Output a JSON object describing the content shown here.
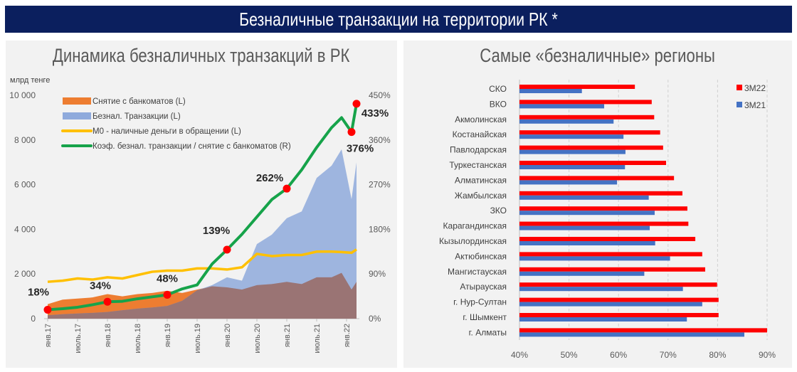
{
  "header": {
    "title": "Безналичные транзакции на территории РК *"
  },
  "chart_data": [
    {
      "type": "area",
      "title": "Динамика безналичных транзакций в РК",
      "ylabel": "млрд тенге",
      "ylim": [
        0,
        10000
      ],
      "y2lim": [
        0,
        450
      ],
      "y_ticks": [
        "0",
        "2 000",
        "4 000",
        "6 000",
        "8 000",
        "10 000"
      ],
      "y2_ticks": [
        "0%",
        "90%",
        "180%",
        "270%",
        "360%",
        "450%"
      ],
      "x_ticks": [
        "янв.17",
        "июль.17",
        "янв.18",
        "июль.18",
        "янв.19",
        "июль.19",
        "янв.20",
        "июль.20",
        "янв.21",
        "июль.21",
        "янв.22"
      ],
      "grid": false,
      "legend_position": "top-left",
      "x": [
        "2017-01",
        "2017-04",
        "2017-07",
        "2017-10",
        "2018-01",
        "2018-04",
        "2018-07",
        "2018-10",
        "2019-01",
        "2019-04",
        "2019-07",
        "2019-10",
        "2020-01",
        "2020-04",
        "2020-07",
        "2020-10",
        "2021-01",
        "2021-04",
        "2021-07",
        "2021-10",
        "2021-12",
        "2022-02",
        "2022-03"
      ],
      "series": [
        {
          "name": "Снятие с банкоматов (L)",
          "kind": "area",
          "axis": "left",
          "color": "#ed7d31",
          "values": [
            650,
            850,
            900,
            950,
            1100,
            1000,
            1100,
            1150,
            1250,
            1150,
            1300,
            1450,
            1400,
            1300,
            1500,
            1550,
            1650,
            1550,
            1850,
            1850,
            2050,
            1300,
            1650
          ]
        },
        {
          "name": "Безнал. Транзакции (L)",
          "kind": "area",
          "axis": "left",
          "color": "#8faadc",
          "values": [
            150,
            200,
            230,
            260,
            300,
            380,
            450,
            500,
            570,
            800,
            1270,
            1500,
            1850,
            1700,
            3340,
            3760,
            4500,
            4800,
            6300,
            6850,
            7580,
            5350,
            7000
          ]
        },
        {
          "name": "М0 - наличные деньги в обращении (L)",
          "kind": "line",
          "axis": "left",
          "color": "#ffc000",
          "values": [
            1650,
            1700,
            1800,
            1750,
            1850,
            1800,
            1950,
            2100,
            2150,
            2150,
            2250,
            2250,
            2200,
            2300,
            2900,
            2800,
            2850,
            2850,
            3000,
            3000,
            2980,
            2950,
            3100
          ]
        },
        {
          "name": "Коэф. безнал. транзакции / снятие с банкоматов (R)",
          "kind": "line",
          "axis": "right",
          "color": "#16a34a",
          "values": [
            18,
            20,
            23,
            28,
            34,
            35,
            40,
            44,
            48,
            60,
            68,
            110,
            139,
            170,
            205,
            240,
            262,
            300,
            345,
            385,
            405,
            376,
            433
          ]
        }
      ],
      "annotations": [
        {
          "x": "2017-01",
          "value": 18,
          "label": "18%"
        },
        {
          "x": "2018-01",
          "value": 34,
          "label": "34%"
        },
        {
          "x": "2019-01",
          "value": 48,
          "label": "48%"
        },
        {
          "x": "2020-01",
          "value": 139,
          "label": "139%"
        },
        {
          "x": "2021-01",
          "value": 262,
          "label": "262%"
        },
        {
          "x": "2022-02",
          "value": 376,
          "label": "376%"
        },
        {
          "x": "2022-03",
          "value": 433,
          "label": "433%"
        }
      ]
    },
    {
      "type": "bar",
      "orientation": "horizontal",
      "title": "Самые «безналичные» регионы",
      "xlim": [
        40,
        90
      ],
      "x_ticks": [
        "40%",
        "50%",
        "60%",
        "70%",
        "80%",
        "90%"
      ],
      "grid": true,
      "legend_position": "top-right",
      "categories": [
        "СКО",
        "ВКО",
        "Акмолинская",
        "Костанайская",
        "Павлодарская",
        "Туркестанская",
        "Алматинская",
        "Жамбылская",
        "ЗКО",
        "Карагандинская",
        "Кызылординская",
        "Актюбинская",
        "Мангистауская",
        "Атырауская",
        "г. Нур-Султан",
        "г. Шымкент",
        "г. Алматы"
      ],
      "series": [
        {
          "name": "3М22",
          "color": "#ff0000",
          "values": [
            63.3,
            66.7,
            67.2,
            68.4,
            69.0,
            69.6,
            71.2,
            72.9,
            73.9,
            74.1,
            75.5,
            76.9,
            77.5,
            79.9,
            80.2,
            80.2,
            90.0
          ]
        },
        {
          "name": "3М21",
          "color": "#4472c4",
          "values": [
            52.6,
            57.1,
            59.0,
            61.0,
            61.4,
            61.3,
            59.7,
            66.1,
            67.3,
            66.3,
            67.4,
            70.4,
            65.2,
            73.0,
            76.9,
            73.8,
            85.4
          ]
        }
      ]
    }
  ]
}
